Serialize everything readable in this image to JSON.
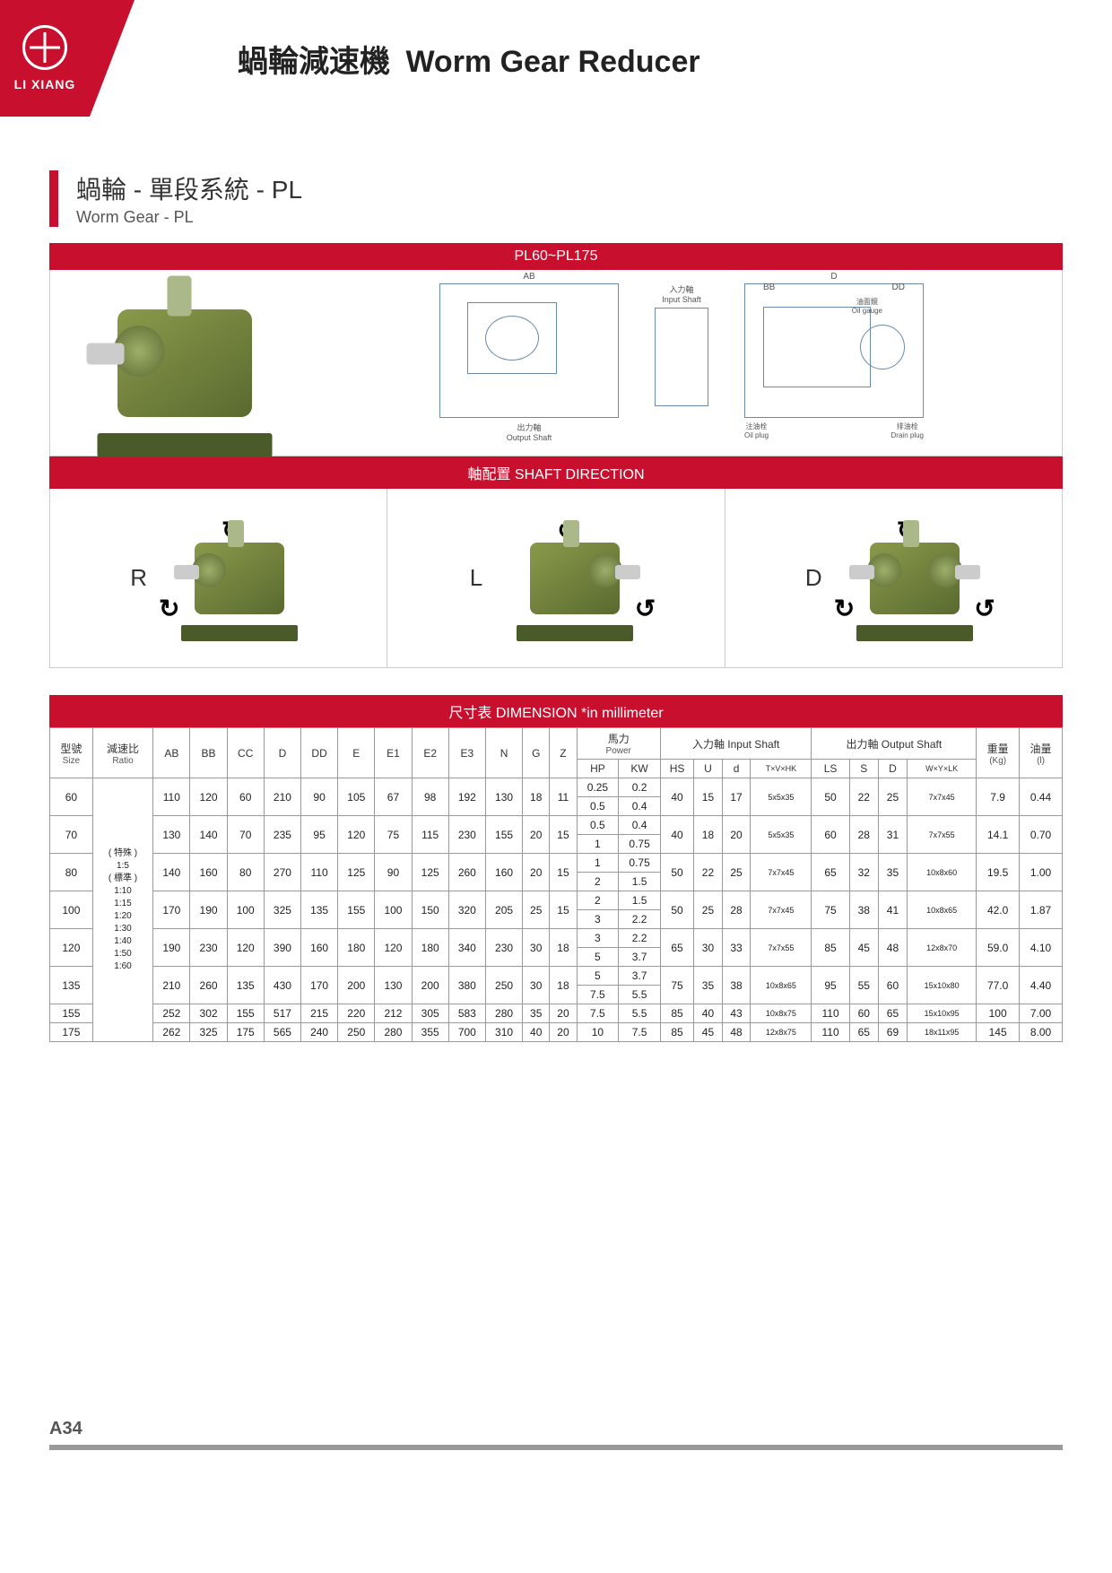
{
  "brand": "LI XIANG",
  "page_title_cn": "蝸輪減速機",
  "page_title_en": "Worm Gear Reducer",
  "section_cn": "蝸輪 - 單段系統 - PL",
  "section_en": "Worm Gear - PL",
  "model_range": "PL60~PL175",
  "shaft_dir_header": "軸配置 SHAFT DIRECTION",
  "shaft_labels": {
    "r": "R",
    "l": "L",
    "d": "D"
  },
  "dim_header": "尺寸表 DIMENSION *in millimeter",
  "tech_labels": {
    "ab": "AB",
    "output": "出力軸\nOutput Shaft",
    "input": "入力軸\nInput Shaft",
    "oil_gauge": "油面鏡\nOil gauge",
    "oil_plug": "注油栓\nOil plug",
    "drain": "排油栓\nDrain plug",
    "d": "D",
    "bb": "BB",
    "dd": "DD"
  },
  "headers": {
    "size": {
      "cn": "型號",
      "en": "Size"
    },
    "ratio": {
      "cn": "減速比",
      "en": "Ratio"
    },
    "cols": [
      "AB",
      "BB",
      "CC",
      "D",
      "DD",
      "E",
      "E1",
      "E2",
      "E3",
      "N",
      "G",
      "Z"
    ],
    "power": {
      "cn": "馬力",
      "en": "Power",
      "sub": [
        "HP",
        "KW"
      ]
    },
    "input": {
      "cn": "入力軸 Input Shaft",
      "sub": [
        "HS",
        "U",
        "d",
        "T×V×HK"
      ]
    },
    "output": {
      "cn": "出力軸 Output Shaft",
      "sub": [
        "LS",
        "S",
        "D",
        "W×Y×LK"
      ]
    },
    "weight": {
      "cn": "重量",
      "en": "(Kg)"
    },
    "oil": {
      "cn": "油量",
      "en": "(l)"
    }
  },
  "ratio_text": "( 特殊 )\n1:5\n( 標準 )\n1:10\n1:15\n1:20\n1:30\n1:40\n1:50\n1:60",
  "rows": [
    {
      "size": "60",
      "ab": "110",
      "bb": "120",
      "cc": "60",
      "d": "210",
      "dd": "90",
      "e": "105",
      "e1": "67",
      "e2": "98",
      "e3": "192",
      "n": "130",
      "g": "18",
      "z": "11",
      "hp": [
        "0.25",
        "0.5"
      ],
      "kw": [
        "0.2",
        "0.4"
      ],
      "hs": "40",
      "u": "15",
      "dd2": "17",
      "tvhk": "5x5x35",
      "ls": "50",
      "s": "22",
      "d2": "25",
      "wylk": "7x7x45",
      "kg": "7.9",
      "oil": "0.44"
    },
    {
      "size": "70",
      "ab": "130",
      "bb": "140",
      "cc": "70",
      "d": "235",
      "dd": "95",
      "e": "120",
      "e1": "75",
      "e2": "115",
      "e3": "230",
      "n": "155",
      "g": "20",
      "z": "15",
      "hp": [
        "0.5",
        "1"
      ],
      "kw": [
        "0.4",
        "0.75"
      ],
      "hs": "40",
      "u": "18",
      "dd2": "20",
      "tvhk": "5x5x35",
      "ls": "60",
      "s": "28",
      "d2": "31",
      "wylk": "7x7x55",
      "kg": "14.1",
      "oil": "0.70"
    },
    {
      "size": "80",
      "ab": "140",
      "bb": "160",
      "cc": "80",
      "d": "270",
      "dd": "110",
      "e": "125",
      "e1": "90",
      "e2": "125",
      "e3": "260",
      "n": "160",
      "g": "20",
      "z": "15",
      "hp": [
        "1",
        "2"
      ],
      "kw": [
        "0.75",
        "1.5"
      ],
      "hs": "50",
      "u": "22",
      "dd2": "25",
      "tvhk": "7x7x45",
      "ls": "65",
      "s": "32",
      "d2": "35",
      "wylk": "10x8x60",
      "kg": "19.5",
      "oil": "1.00"
    },
    {
      "size": "100",
      "ab": "170",
      "bb": "190",
      "cc": "100",
      "d": "325",
      "dd": "135",
      "e": "155",
      "e1": "100",
      "e2": "150",
      "e3": "320",
      "n": "205",
      "g": "25",
      "z": "15",
      "hp": [
        "2",
        "3"
      ],
      "kw": [
        "1.5",
        "2.2"
      ],
      "hs": "50",
      "u": "25",
      "dd2": "28",
      "tvhk": "7x7x45",
      "ls": "75",
      "s": "38",
      "d2": "41",
      "wylk": "10x8x65",
      "kg": "42.0",
      "oil": "1.87"
    },
    {
      "size": "120",
      "ab": "190",
      "bb": "230",
      "cc": "120",
      "d": "390",
      "dd": "160",
      "e": "180",
      "e1": "120",
      "e2": "180",
      "e3": "340",
      "n": "230",
      "g": "30",
      "z": "18",
      "hp": [
        "3",
        "5"
      ],
      "kw": [
        "2.2",
        "3.7"
      ],
      "hs": "65",
      "u": "30",
      "dd2": "33",
      "tvhk": "7x7x55",
      "ls": "85",
      "s": "45",
      "d2": "48",
      "wylk": "12x8x70",
      "kg": "59.0",
      "oil": "4.10"
    },
    {
      "size": "135",
      "ab": "210",
      "bb": "260",
      "cc": "135",
      "d": "430",
      "dd": "170",
      "e": "200",
      "e1": "130",
      "e2": "200",
      "e3": "380",
      "n": "250",
      "g": "30",
      "z": "18",
      "hp": [
        "5",
        "7.5"
      ],
      "kw": [
        "3.7",
        "5.5"
      ],
      "hs": "75",
      "u": "35",
      "dd2": "38",
      "tvhk": "10x8x65",
      "ls": "95",
      "s": "55",
      "d2": "60",
      "wylk": "15x10x80",
      "kg": "77.0",
      "oil": "4.40"
    },
    {
      "size": "155",
      "ab": "252",
      "bb": "302",
      "cc": "155",
      "d": "517",
      "dd": "215",
      "e": "220",
      "e1": "212",
      "e2": "305",
      "e3": "583",
      "n": "280",
      "g": "35",
      "z": "20",
      "hp": [
        "7.5"
      ],
      "kw": [
        "5.5"
      ],
      "hs": "85",
      "u": "40",
      "dd2": "43",
      "tvhk": "10x8x75",
      "ls": "110",
      "s": "60",
      "d2": "65",
      "wylk": "15x10x95",
      "kg": "100",
      "oil": "7.00"
    },
    {
      "size": "175",
      "ab": "262",
      "bb": "325",
      "cc": "175",
      "d": "565",
      "dd": "240",
      "e": "250",
      "e1": "280",
      "e2": "355",
      "e3": "700",
      "n": "310",
      "g": "40",
      "z": "20",
      "hp": [
        "10"
      ],
      "kw": [
        "7.5"
      ],
      "hs": "85",
      "u": "45",
      "dd2": "48",
      "tvhk": "12x8x75",
      "ls": "110",
      "s": "65",
      "d2": "69",
      "wylk": "18x11x95",
      "kg": "145",
      "oil": "8.00"
    }
  ],
  "page_number": "A34"
}
